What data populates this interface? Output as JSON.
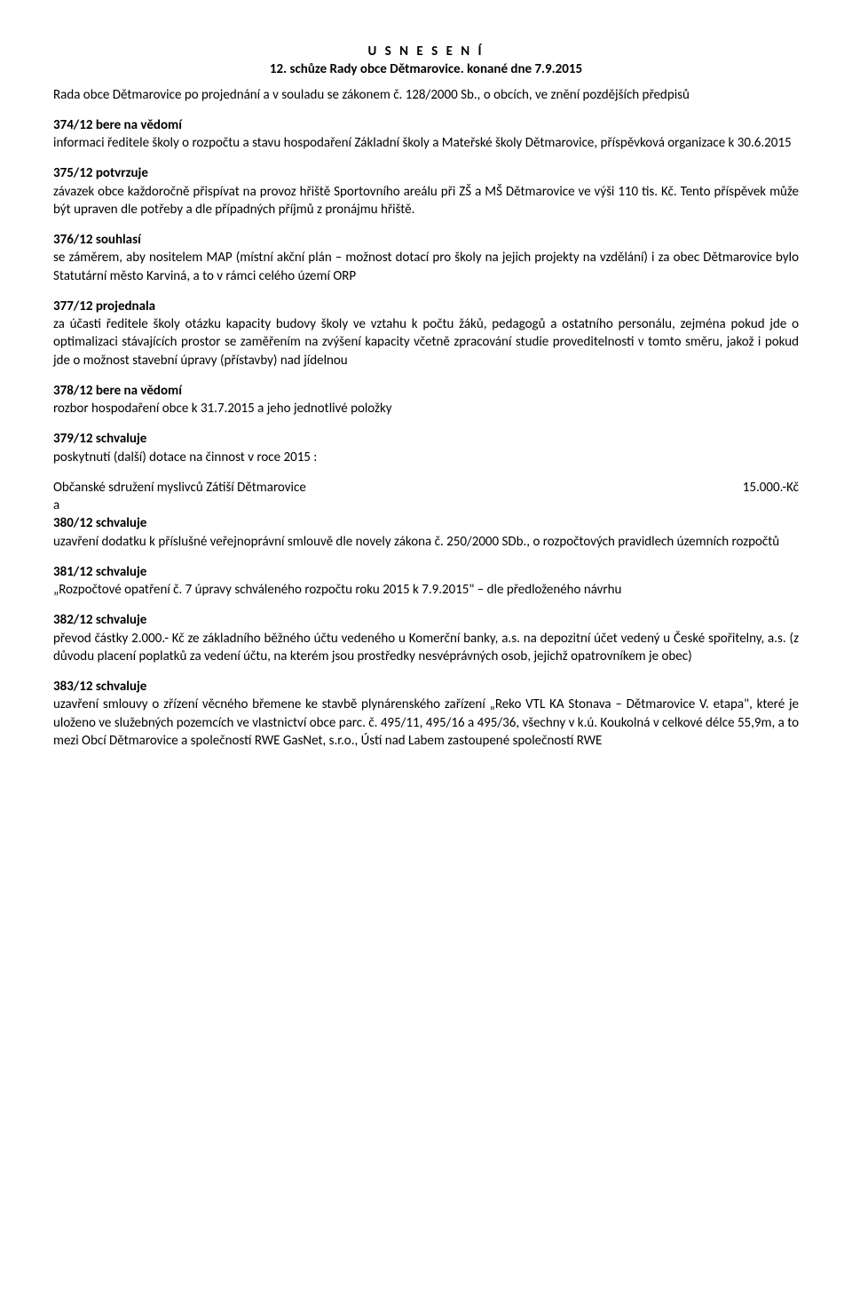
{
  "title1": "U S N E S E N Í",
  "title2": "12. schůze Rady obce Dětmarovice. konané dne 7.9.2015",
  "intro": "Rada obce Dětmarovice po projednání a v souladu se zákonem č. 128/2000 Sb., o obcích, ve znění pozdějších předpisů",
  "s374h": "374/12  bere na vědomí",
  "s374": "informaci ředitele školy o rozpočtu a stavu hospodaření Základní školy a Mateřské školy Dětmarovice, příspěvková organizace k 30.6.2015",
  "s375h": "375/12  potvrzuje",
  "s375": "závazek obce každoročně přispívat na provoz hřiště Sportovního areálu při ZŠ a MŠ Dětmarovice ve výši 110 tis. Kč. Tento příspěvek může být upraven dle potřeby a dle případných příjmů z pronájmu hřiště.",
  "s376h": "376/12  souhlasí",
  "s376": "se záměrem, aby nositelem MAP (místní akční plán – možnost dotací pro školy na jejich projekty na vzdělání) i za obec Dětmarovice bylo Statutární město Karviná, a to v rámci celého území ORP",
  "s377h": "377/12  projednala",
  "s377": "za účasti ředitele školy otázku kapacity budovy školy ve vztahu k počtu žáků, pedagogů a ostatního personálu, zejména pokud jde o optimalizaci stávajících prostor se zaměřením na zvýšení kapacity včetně zpracování studie proveditelnosti v tomto směru, jakož i pokud jde o možnost stavební úpravy (přístavby) nad jídelnou",
  "s378h": "378/12  bere na vědomí",
  "s378": "rozbor hospodaření obce k 31.7.2015 a jeho jednotlivé položky",
  "s379h": "379/12  schvaluje",
  "s379": "poskytnutí (další) dotace na činnost v roce 2015 :",
  "s379_org": "Občanské sdružení myslivců Zátiší Dětmarovice",
  "s379_amt": "15.000.-Kč",
  "s380a": "a",
  "s380h": "380/12  schvaluje",
  "s380": "uzavření dodatku  k příslušné veřejnoprávní smlouvě dle novely zákona č. 250/2000 SDb., o rozpočtových pravidlech územních rozpočtů",
  "s381h": "381/12  schvaluje",
  "s381": "„Rozpočtové opatření č. 7  úpravy schváleného rozpočtu roku 2015 k 7.9.2015\" – dle předloženého návrhu",
  "s382h": "382/12  schvaluje",
  "s382": "převod částky 2.000.- Kč ze základního běžného účtu vedeného u Komerční banky, a.s. na depozitní účet vedený u České spořitelny, a.s. (z důvodu placení poplatků za vedení účtu, na kterém jsou prostředky nesvéprávných osob, jejichž opatrovníkem je obec)",
  "s383h": "383/12  schvaluje",
  "s383": "uzavření smlouvy o zřízení věcného břemene ke stavbě plynárenského zařízení „Reko VTL KA Stonava – Dětmarovice V. etapa\", které je uloženo ve služebných pozemcích ve vlastnictví obce    parc. č. 495/11, 495/16 a 495/36, všechny   v k.ú. Koukolná v celkové délce 55,9m, a to mezi Obcí Dětmarovice a společností RWE GasNet, s.r.o., Ústí nad Labem zastoupené společností RWE"
}
